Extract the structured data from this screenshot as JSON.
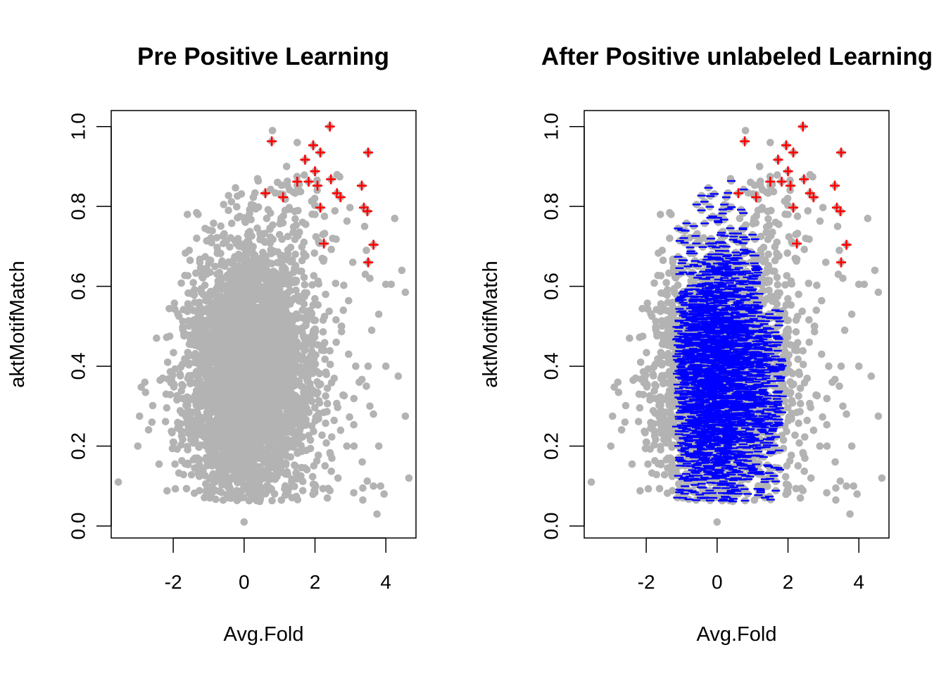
{
  "chart_data": [
    {
      "type": "scatter",
      "title": "Pre Positive Learning",
      "xlabel": "Avg.Fold",
      "ylabel": "aktMotifMatch",
      "xlim": [
        -3.75,
        4.85
      ],
      "ylim": [
        -0.03,
        1.04
      ],
      "xticks": [
        -2,
        0,
        2,
        4
      ],
      "yticks": [
        0.0,
        0.2,
        0.4,
        0.6,
        0.8,
        1.0
      ],
      "xtick_labels": [
        "-2",
        "0",
        "2",
        "4"
      ],
      "ytick_labels": [
        "0.0",
        "0.2",
        "0.4",
        "0.6",
        "0.8",
        "1.0"
      ],
      "grid": false,
      "legend": "none",
      "series": [
        {
          "role": "unlabeled",
          "marker": "filled-circle",
          "color": "#b3b3b3",
          "distribution": "dense cloud centred near x=0, y=0.4; approx 4000 points"
        },
        {
          "role": "positive",
          "marker": "plus",
          "color": "#ff0000"
        }
      ]
    },
    {
      "type": "scatter",
      "title": "After Positive unlabeled Learning",
      "xlabel": "Avg.Fold",
      "ylabel": "aktMotifMatch",
      "xlim": [
        -3.75,
        4.85
      ],
      "ylim": [
        -0.03,
        1.04
      ],
      "xticks": [
        -2,
        0,
        2,
        4
      ],
      "yticks": [
        0.0,
        0.2,
        0.4,
        0.6,
        0.8,
        1.0
      ],
      "xtick_labels": [
        "-2",
        "0",
        "2",
        "4"
      ],
      "ytick_labels": [
        "0.0",
        "0.2",
        "0.4",
        "0.6",
        "0.8",
        "1.0"
      ],
      "grid": false,
      "legend": "none",
      "series": [
        {
          "role": "unlabeled",
          "marker": "filled-circle",
          "color": "#b3b3b3"
        },
        {
          "role": "reliable-negative",
          "marker": "dash",
          "color": "#0000ff",
          "x_range": [
            -1.1,
            1.9
          ]
        },
        {
          "role": "positive",
          "marker": "plus",
          "color": "#ff0000"
        }
      ]
    }
  ],
  "positives": [
    [
      0.78,
      0.963
    ],
    [
      2.42,
      1.0
    ],
    [
      1.95,
      0.953
    ],
    [
      2.15,
      0.935
    ],
    [
      3.5,
      0.935
    ],
    [
      1.72,
      0.917
    ],
    [
      2.0,
      0.888
    ],
    [
      2.45,
      0.868
    ],
    [
      1.5,
      0.862
    ],
    [
      1.82,
      0.862
    ],
    [
      2.07,
      0.852
    ],
    [
      3.32,
      0.852
    ],
    [
      0.6,
      0.833
    ],
    [
      2.62,
      0.833
    ],
    [
      2.72,
      0.823
    ],
    [
      1.1,
      0.823
    ],
    [
      2.15,
      0.797
    ],
    [
      3.38,
      0.797
    ],
    [
      3.48,
      0.788
    ],
    [
      2.25,
      0.707
    ],
    [
      3.65,
      0.704
    ],
    [
      3.5,
      0.66
    ]
  ],
  "outliers": [
    [
      -3.55,
      0.11
    ],
    [
      -3.0,
      0.2
    ],
    [
      -2.95,
      0.275
    ],
    [
      -2.8,
      0.36
    ],
    [
      -2.6,
      0.26
    ],
    [
      -2.4,
      0.155
    ],
    [
      -2.2,
      0.33
    ],
    [
      -2.3,
      0.37
    ],
    [
      -2.1,
      0.475
    ],
    [
      -1.95,
      0.155
    ],
    [
      -2.0,
      0.21
    ],
    [
      -1.6,
      0.78
    ],
    [
      -1.55,
      0.69
    ],
    [
      -1.3,
      0.78
    ],
    [
      -1.25,
      0.66
    ],
    [
      -1.1,
      0.745
    ],
    [
      0.8,
      0.99
    ],
    [
      1.5,
      0.96
    ],
    [
      1.2,
      0.9
    ],
    [
      1.65,
      0.76
    ],
    [
      2.0,
      0.78
    ],
    [
      2.5,
      0.72
    ],
    [
      3.42,
      0.63
    ],
    [
      3.55,
      0.62
    ],
    [
      4.0,
      0.605
    ],
    [
      4.15,
      0.605
    ],
    [
      4.45,
      0.64
    ],
    [
      4.55,
      0.585
    ],
    [
      4.25,
      0.77
    ],
    [
      4.55,
      0.275
    ],
    [
      4.65,
      0.12
    ],
    [
      4.0,
      0.4
    ],
    [
      4.35,
      0.375
    ],
    [
      3.8,
      0.53
    ],
    [
      3.6,
      0.49
    ],
    [
      3.8,
      0.2
    ],
    [
      3.75,
      0.03
    ],
    [
      3.35,
      0.095
    ],
    [
      3.35,
      0.065
    ],
    [
      3.65,
      0.1
    ],
    [
      3.95,
      0.08
    ],
    [
      3.85,
      0.1
    ],
    [
      3.25,
      0.36
    ],
    [
      3.45,
      0.35
    ],
    [
      3.55,
      0.3
    ],
    [
      3.65,
      0.28
    ],
    [
      3.15,
      0.4
    ],
    [
      2.95,
      0.43
    ],
    [
      2.9,
      0.2
    ],
    [
      3.1,
      0.2
    ],
    [
      2.8,
      0.54
    ],
    [
      2.6,
      0.46
    ],
    [
      2.75,
      0.5
    ],
    [
      3.5,
      0.4
    ],
    [
      0.0,
      0.01
    ],
    [
      2.35,
      0.07
    ],
    [
      2.65,
      0.12
    ],
    [
      2.3,
      0.58
    ],
    [
      3.45,
      0.69
    ],
    [
      3.4,
      0.75
    ]
  ]
}
